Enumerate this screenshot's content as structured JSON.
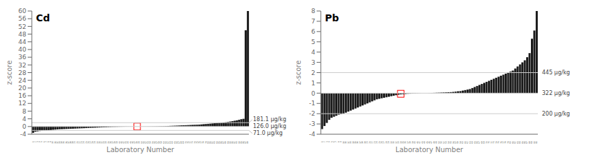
{
  "chart_data": [
    {
      "type": "bar",
      "title": "Cd",
      "xlabel": "Laboratory Number",
      "ylabel": "z-score",
      "categories": [
        "1",
        "2",
        "3",
        "4",
        "5",
        "6",
        "7",
        "8",
        "9",
        "10",
        "11",
        "12",
        "13",
        "14",
        "15",
        "16",
        "17",
        "18",
        "19",
        "20",
        "21",
        "22",
        "23",
        "24",
        "25",
        "26",
        "27",
        "28",
        "29",
        "30",
        "31",
        "32",
        "33",
        "34",
        "35",
        "36",
        "37",
        "38",
        "39",
        "40",
        "41",
        "42",
        "43",
        "44",
        "45",
        "46",
        "47",
        "48",
        "49",
        "50",
        "51",
        "52",
        "53",
        "54",
        "55",
        "56",
        "57",
        "58",
        "59",
        "60",
        "61",
        "62",
        "63",
        "64",
        "65",
        "66",
        "67",
        "68",
        "69",
        "70",
        "71",
        "72",
        "73",
        "74",
        "75",
        "76",
        "77",
        "78",
        "79",
        "80",
        "81",
        "82",
        "83",
        "84",
        "85",
        "86",
        "87",
        "88",
        "89",
        "90",
        "91",
        "92",
        "93",
        "94",
        "95",
        "96",
        "97",
        "98"
      ],
      "values": [
        -3.3,
        -2.7,
        -2.5,
        -2.3,
        -2.2,
        -2.1,
        -2.0,
        -1.9,
        -1.8,
        -1.7,
        -1.6,
        -1.5,
        -1.4,
        -1.35,
        -1.3,
        -1.25,
        -1.2,
        -1.15,
        -1.1,
        -1.05,
        -1.0,
        -0.95,
        -0.9,
        -0.85,
        -0.8,
        -0.75,
        -0.7,
        -0.65,
        -0.6,
        -0.55,
        -0.5,
        -0.45,
        -0.4,
        -0.35,
        -0.3,
        -0.25,
        -0.2,
        -0.18,
        -0.15,
        -0.12,
        -0.1,
        -0.08,
        -0.06,
        -0.05,
        -0.04,
        -0.03,
        -0.02,
        -0.01,
        0.01,
        0.02,
        0.03,
        0.04,
        0.05,
        0.06,
        0.08,
        0.1,
        0.12,
        0.15,
        0.18,
        0.2,
        0.25,
        0.3,
        0.35,
        0.4,
        0.45,
        0.5,
        0.55,
        0.6,
        0.65,
        0.7,
        0.75,
        0.8,
        0.85,
        0.9,
        0.95,
        1.0,
        1.1,
        1.2,
        1.3,
        1.4,
        1.5,
        1.6,
        1.7,
        1.8,
        1.9,
        2.0,
        2.1,
        2.2,
        2.4,
        2.6,
        2.8,
        3.0,
        3.2,
        3.5,
        3.8,
        4.0,
        50.0,
        60.0
      ],
      "color": "#1a1a1a",
      "ylim": [
        -4,
        60
      ],
      "yticks": [
        -4,
        0,
        4,
        8,
        12,
        16,
        20,
        24,
        28,
        32,
        36,
        40,
        44,
        48,
        52,
        56,
        60
      ],
      "annotations": [
        {
          "y": 2.0,
          "text": "181.1 μg/kg"
        },
        {
          "y": 0.0,
          "text": "126.0 μg/kg"
        },
        {
          "y": -2.0,
          "text": "71.0 μg/kg"
        }
      ],
      "highlight": {
        "category": "48",
        "color": "red"
      }
    },
    {
      "type": "bar",
      "title": "Pb",
      "xlabel": "Laboratory Number",
      "ylabel": "z-score",
      "categories": [
        "1",
        "2",
        "3",
        "4",
        "5",
        "6",
        "7",
        "8",
        "9",
        "10",
        "11",
        "12",
        "13",
        "14",
        "15",
        "16",
        "17",
        "18",
        "19",
        "20",
        "21",
        "22",
        "23",
        "24",
        "25",
        "26",
        "27",
        "28",
        "29",
        "30",
        "31",
        "32",
        "33",
        "34",
        "35",
        "36",
        "37",
        "38",
        "39",
        "40",
        "41",
        "42",
        "43",
        "44",
        "45",
        "46",
        "47",
        "48",
        "49",
        "50",
        "51",
        "52",
        "53",
        "54",
        "55",
        "56",
        "57",
        "58",
        "59",
        "60",
        "61",
        "62",
        "63",
        "64",
        "65",
        "66",
        "67",
        "68",
        "69",
        "70",
        "71",
        "72",
        "73",
        "74",
        "75",
        "76",
        "77",
        "78",
        "79",
        "80",
        "81",
        "82",
        "83",
        "84",
        "85",
        "86",
        "87",
        "88",
        "89",
        "90",
        "91"
      ],
      "values": [
        -3.5,
        -3.2,
        -2.9,
        -2.6,
        -2.4,
        -2.3,
        -2.2,
        -2.1,
        -2.05,
        -2.0,
        -1.9,
        -1.8,
        -1.7,
        -1.6,
        -1.5,
        -1.4,
        -1.3,
        -1.2,
        -1.1,
        -1.0,
        -0.9,
        -0.8,
        -0.7,
        -0.6,
        -0.55,
        -0.5,
        -0.45,
        -0.4,
        -0.35,
        -0.3,
        -0.25,
        -0.2,
        -0.15,
        -0.12,
        -0.1,
        -0.08,
        -0.06,
        -0.05,
        -0.04,
        -0.03,
        -0.02,
        -0.01,
        0.0,
        0.0,
        0.0,
        0.01,
        0.02,
        0.03,
        0.04,
        0.05,
        0.06,
        0.07,
        0.08,
        0.09,
        0.1,
        0.12,
        0.15,
        0.18,
        0.2,
        0.25,
        0.3,
        0.35,
        0.4,
        0.5,
        0.6,
        0.7,
        0.8,
        0.9,
        1.0,
        1.1,
        1.2,
        1.3,
        1.4,
        1.5,
        1.6,
        1.7,
        1.8,
        1.9,
        2.0,
        2.1,
        2.2,
        2.4,
        2.6,
        2.8,
        3.0,
        3.2,
        3.5,
        3.9,
        5.3,
        6.1,
        8.0
      ],
      "color": "#1a1a1a",
      "ylim": [
        -4,
        8
      ],
      "yticks": [
        -4,
        -3,
        -2,
        -1,
        0,
        1,
        2,
        3,
        4,
        5,
        6,
        7,
        8
      ],
      "annotations": [
        {
          "y": 2.0,
          "text": "445 μg/kg"
        },
        {
          "y": 0.0,
          "text": "322 μg/kg"
        },
        {
          "y": -2.0,
          "text": "200 μg/kg"
        }
      ],
      "highlight": {
        "category": "34",
        "color": "red"
      }
    }
  ]
}
